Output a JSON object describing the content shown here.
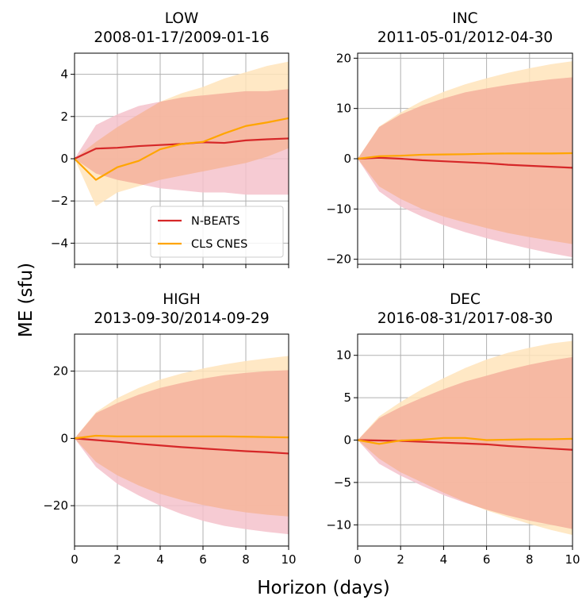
{
  "figure": {
    "xlabel": "Horizon (days)",
    "ylabel": "ME (sfu)",
    "colors": {
      "nbeats": "#d62728",
      "cls": "#ffa500",
      "nbeats_band": "#f4c2cb",
      "cls_band": "#ffe4bb",
      "overlap_band": "#f8cba8",
      "grid": "#b0b0b0"
    }
  },
  "chart_data": [
    {
      "type": "line",
      "title": "LOW\n2008-01-17/2009-01-16",
      "title_line1": "LOW",
      "title_line2": "2008-01-17/2009-01-16",
      "xlim": [
        0,
        10
      ],
      "ylim": [
        -5,
        5
      ],
      "xticks": [
        0,
        2,
        4,
        6,
        8,
        10
      ],
      "yticks": [
        -4,
        -2,
        0,
        2,
        4
      ],
      "grid": true,
      "legend": {
        "placement": "lower-right",
        "entries": [
          "N-BEATS",
          "CLS CNES"
        ]
      },
      "x": [
        0,
        1,
        2,
        3,
        4,
        5,
        6,
        7,
        8,
        9,
        10
      ],
      "series": [
        {
          "name": "N-BEATS",
          "values": [
            0,
            0.48,
            0.52,
            0.6,
            0.65,
            0.7,
            0.78,
            0.75,
            0.87,
            0.92,
            0.96
          ],
          "band_lower": [
            0,
            -0.7,
            -1.0,
            -1.2,
            -1.4,
            -1.5,
            -1.6,
            -1.6,
            -1.7,
            -1.7,
            -1.7
          ],
          "band_upper": [
            0,
            1.6,
            2.1,
            2.5,
            2.7,
            2.9,
            3.0,
            3.1,
            3.2,
            3.2,
            3.3
          ]
        },
        {
          "name": "CLS CNES",
          "values": [
            0,
            -1.0,
            -0.4,
            -0.1,
            0.45,
            0.7,
            0.8,
            1.2,
            1.55,
            1.72,
            1.92
          ],
          "band_lower": [
            0,
            -2.25,
            -1.6,
            -1.3,
            -1.0,
            -0.8,
            -0.6,
            -0.4,
            -0.2,
            0.1,
            0.5
          ],
          "band_upper": [
            0,
            0.8,
            1.5,
            2.1,
            2.7,
            3.1,
            3.4,
            3.8,
            4.1,
            4.4,
            4.6
          ]
        }
      ]
    },
    {
      "type": "line",
      "title": "INC\n2011-05-01/2012-04-30",
      "title_line1": "INC",
      "title_line2": "2011-05-01/2012-04-30",
      "xlim": [
        0,
        10
      ],
      "ylim": [
        -21,
        21
      ],
      "xticks": [
        0,
        2,
        4,
        6,
        8,
        10
      ],
      "yticks": [
        -20,
        -10,
        0,
        10,
        20
      ],
      "grid": true,
      "x": [
        0,
        1,
        2,
        3,
        4,
        5,
        6,
        7,
        8,
        9,
        10
      ],
      "series": [
        {
          "name": "N-BEATS",
          "values": [
            0,
            0.2,
            0,
            -0.3,
            -0.5,
            -0.7,
            -0.9,
            -1.2,
            -1.4,
            -1.6,
            -1.8
          ],
          "band_lower": [
            0,
            -6.5,
            -9.5,
            -11.5,
            -13.2,
            -14.6,
            -15.8,
            -16.9,
            -17.9,
            -18.8,
            -19.6
          ],
          "band_upper": [
            0,
            6.3,
            8.8,
            10.6,
            12.0,
            13.2,
            14.0,
            14.7,
            15.3,
            15.8,
            16.2
          ]
        },
        {
          "name": "CLS CNES",
          "values": [
            0,
            0.5,
            0.6,
            0.8,
            0.85,
            0.9,
            1.0,
            1.05,
            1.05,
            1.05,
            1.1
          ],
          "band_lower": [
            0,
            -5.5,
            -8.0,
            -10.0,
            -11.5,
            -12.7,
            -13.8,
            -14.8,
            -15.6,
            -16.3,
            -17.0
          ],
          "band_upper": [
            0,
            6.4,
            9.2,
            11.5,
            13.3,
            14.8,
            16.0,
            17.1,
            18.0,
            18.8,
            19.4
          ]
        }
      ]
    },
    {
      "type": "line",
      "title": "HIGH\n2013-09-30/2014-09-29",
      "title_line1": "HIGH",
      "title_line2": "2013-09-30/2014-09-29",
      "xlim": [
        0,
        10
      ],
      "ylim": [
        -32,
        31
      ],
      "xticks": [
        0,
        2,
        4,
        6,
        8,
        10
      ],
      "yticks": [
        -20,
        0,
        20
      ],
      "grid": true,
      "x": [
        0,
        1,
        2,
        3,
        4,
        5,
        6,
        7,
        8,
        9,
        10
      ],
      "series": [
        {
          "name": "N-BEATS",
          "values": [
            0,
            -0.5,
            -1.0,
            -1.6,
            -2.1,
            -2.6,
            -3.0,
            -3.4,
            -3.8,
            -4.1,
            -4.5
          ],
          "band_lower": [
            0,
            -8.5,
            -13.5,
            -17.0,
            -20.0,
            -22.5,
            -24.5,
            -26.0,
            -27.0,
            -27.8,
            -28.5
          ],
          "band_upper": [
            0,
            7.5,
            10.5,
            13.0,
            15.0,
            16.5,
            17.8,
            18.8,
            19.5,
            20.0,
            20.3
          ]
        },
        {
          "name": "CLS CNES",
          "values": [
            0,
            0.8,
            0.6,
            0.6,
            0.6,
            0.6,
            0.6,
            0.6,
            0.5,
            0.4,
            0.3
          ],
          "band_lower": [
            0,
            -7.0,
            -11.0,
            -14.0,
            -16.5,
            -18.3,
            -19.8,
            -21.0,
            -22.0,
            -22.7,
            -23.2
          ],
          "band_upper": [
            0,
            7.8,
            12.0,
            15.0,
            17.5,
            19.3,
            20.8,
            22.0,
            23.0,
            23.8,
            24.5
          ]
        }
      ]
    },
    {
      "type": "line",
      "title": "DEC\n2016-08-31/2017-08-30",
      "title_line1": "DEC",
      "title_line2": "2016-08-31/2017-08-30",
      "xlim": [
        0,
        10
      ],
      "ylim": [
        -12.5,
        12.5
      ],
      "xticks": [
        0,
        2,
        4,
        6,
        8,
        10
      ],
      "yticks": [
        -10,
        -5,
        0,
        5,
        10
      ],
      "grid": true,
      "x": [
        0,
        1,
        2,
        3,
        4,
        5,
        6,
        7,
        8,
        9,
        10
      ],
      "series": [
        {
          "name": "N-BEATS",
          "values": [
            0,
            -0.05,
            -0.1,
            -0.2,
            -0.3,
            -0.4,
            -0.5,
            -0.7,
            -0.85,
            -1.0,
            -1.15
          ],
          "band_lower": [
            0,
            -2.8,
            -4.2,
            -5.4,
            -6.5,
            -7.4,
            -8.2,
            -8.9,
            -9.5,
            -10.0,
            -10.5
          ],
          "band_upper": [
            0,
            2.6,
            3.9,
            5.0,
            6.0,
            6.9,
            7.6,
            8.3,
            8.9,
            9.4,
            9.8
          ]
        },
        {
          "name": "CLS CNES",
          "values": [
            0,
            -0.45,
            -0.05,
            0.05,
            0.25,
            0.25,
            0.0,
            0.05,
            0.1,
            0.1,
            0.15
          ],
          "band_lower": [
            0,
            -2.2,
            -3.8,
            -5.0,
            -6.2,
            -7.3,
            -8.3,
            -9.1,
            -9.9,
            -10.6,
            -11.2
          ],
          "band_upper": [
            0,
            2.8,
            4.5,
            6.0,
            7.3,
            8.5,
            9.5,
            10.3,
            10.9,
            11.4,
            11.7
          ]
        }
      ]
    }
  ]
}
